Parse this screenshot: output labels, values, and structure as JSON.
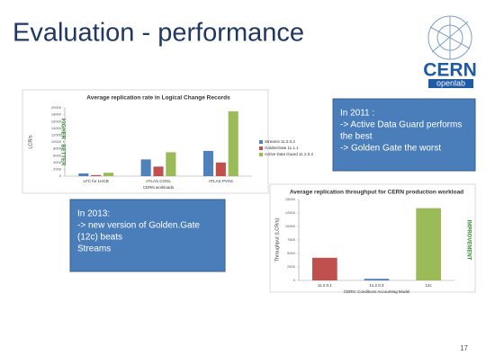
{
  "slide": {
    "title": "Evaluation - performance",
    "logo": {
      "name": "CERN",
      "sub": "openlab"
    },
    "notes": [
      {
        "lines": [
          "In 2011 :",
          "-> Active Data Guard performs",
          "the best",
          "-> Golden Gate the worst"
        ]
      },
      {
        "lines": [
          "In 2013:",
          "-> new version of Golden.Gate",
          "(12c) beats",
          "Streams"
        ]
      }
    ],
    "page_number": 17
  },
  "chart_data": [
    {
      "type": "bar",
      "title": "Average replication rate in Logical Change Records",
      "y_label": "LCR/s",
      "x_label": "CERN workloads",
      "annotation": "HIGHER - BETTER",
      "categories": [
        "LFC for LHCB",
        "ATLAS COOL",
        "ATLAS PVSS"
      ],
      "series": [
        {
          "name": "Streams 11.2.0.2",
          "color": "#4f81bd",
          "values": [
            800,
            4900,
            7400
          ]
        },
        {
          "name": "GoldenGate 11.1.1",
          "color": "#c0504d",
          "values": [
            300,
            2800,
            4000
          ]
        },
        {
          "name": "Active Data Guard 11.2.0.2",
          "color": "#9bbb59",
          "values": [
            1000,
            7000,
            19000
          ]
        }
      ],
      "ylim": [
        0,
        20000
      ],
      "yticks": [
        0,
        2000,
        4000,
        6000,
        8000,
        10000,
        12000,
        14000,
        16000,
        18000,
        20000
      ],
      "grid": false
    },
    {
      "type": "bar",
      "title": "Average replication throughput for CERN production workload",
      "y_label": "Throughput (LCR/s)",
      "x_label": "CERN: Conditions Accounting Model",
      "annotation": "IMPROVEMENT",
      "categories": [
        "11.2.0.1",
        "11.2.0.3",
        "12c"
      ],
      "series": [
        {
          "colors": [
            "#c0504d",
            "#4f81bd",
            "#9bbb59"
          ],
          "values": [
            4200,
            300,
            13400
          ]
        }
      ],
      "ylim": [
        0,
        15000
      ],
      "yticks": [
        0,
        2500,
        5000,
        7500,
        10000,
        12500,
        15000
      ],
      "grid": false
    }
  ]
}
